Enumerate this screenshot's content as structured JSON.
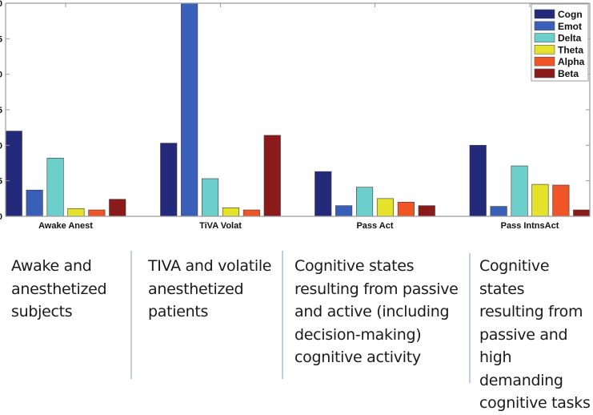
{
  "chart_data": {
    "type": "bar",
    "title": "",
    "xlabel": "",
    "ylabel": "",
    "categories": [
      "Awake Anest",
      "TiVA Volat",
      "Pass Act",
      "Pass IntnsAct"
    ],
    "ylim": [
      0,
      30
    ],
    "yticks": [
      0,
      5,
      10,
      15,
      20,
      25,
      30
    ],
    "ytick_labels_visible": [
      "0",
      "5",
      "0",
      "5",
      "0",
      "5",
      "0"
    ],
    "grid": false,
    "legend_position": "top-right",
    "series": [
      {
        "name": "Cogn",
        "color": "#232a7a",
        "values": [
          12.0,
          10.3,
          6.3,
          10.0
        ]
      },
      {
        "name": "Emot",
        "color": "#3a5fb8",
        "values": [
          3.7,
          30.0,
          1.5,
          1.4
        ]
      },
      {
        "name": "Delta",
        "color": "#6ccfcc",
        "values": [
          8.2,
          5.3,
          4.1,
          7.1
        ]
      },
      {
        "name": "Theta",
        "color": "#e4e22a",
        "values": [
          1.1,
          1.2,
          2.5,
          4.5
        ]
      },
      {
        "name": "Alpha",
        "color": "#ef5526",
        "values": [
          0.9,
          0.9,
          2.0,
          4.4
        ]
      },
      {
        "name": "Beta",
        "color": "#8b1a1a",
        "values": [
          2.4,
          11.4,
          1.5,
          0.9
        ]
      }
    ]
  },
  "captions": [
    "Awake and\nanesthetized\nsubjects",
    "TIVA and volatile\nanesthetized\npatients",
    "Cognitive states\nresulting from passive\nand active (including\ndecision-making)\ncognitive activity",
    "Cognitive states\nresulting from\npassive and\nhigh demanding\ncognitive tasks"
  ]
}
